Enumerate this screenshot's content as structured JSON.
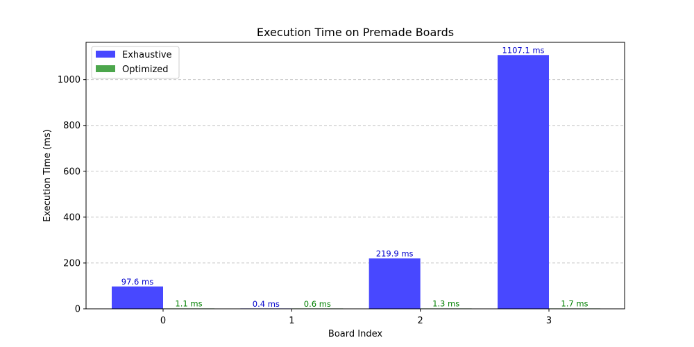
{
  "chart_data": {
    "type": "bar",
    "title": "Execution Time on Premade Boards",
    "xlabel": "Board Index",
    "ylabel": "Execution Time (ms)",
    "categories": [
      "0",
      "1",
      "2",
      "3"
    ],
    "series": [
      {
        "name": "Exhaustive",
        "values": [
          97.6,
          0.4,
          219.9,
          1107.1
        ],
        "labels": [
          "97.6 ms",
          "0.4 ms",
          "219.9 ms",
          "1107.1 ms"
        ],
        "color": "#4848ff",
        "label_color": "#0000cc"
      },
      {
        "name": "Optimized",
        "values": [
          1.1,
          0.6,
          1.3,
          1.7
        ],
        "labels": [
          "1.1 ms",
          "0.6 ms",
          "1.3 ms",
          "1.7 ms"
        ],
        "color": "#4ca64c",
        "label_color": "#008000"
      }
    ],
    "ylim": [
      0,
      1162.5
    ],
    "yticks": [
      0,
      200,
      400,
      600,
      800,
      1000
    ],
    "grid": "y-dashed",
    "legend_position": "top-left"
  }
}
